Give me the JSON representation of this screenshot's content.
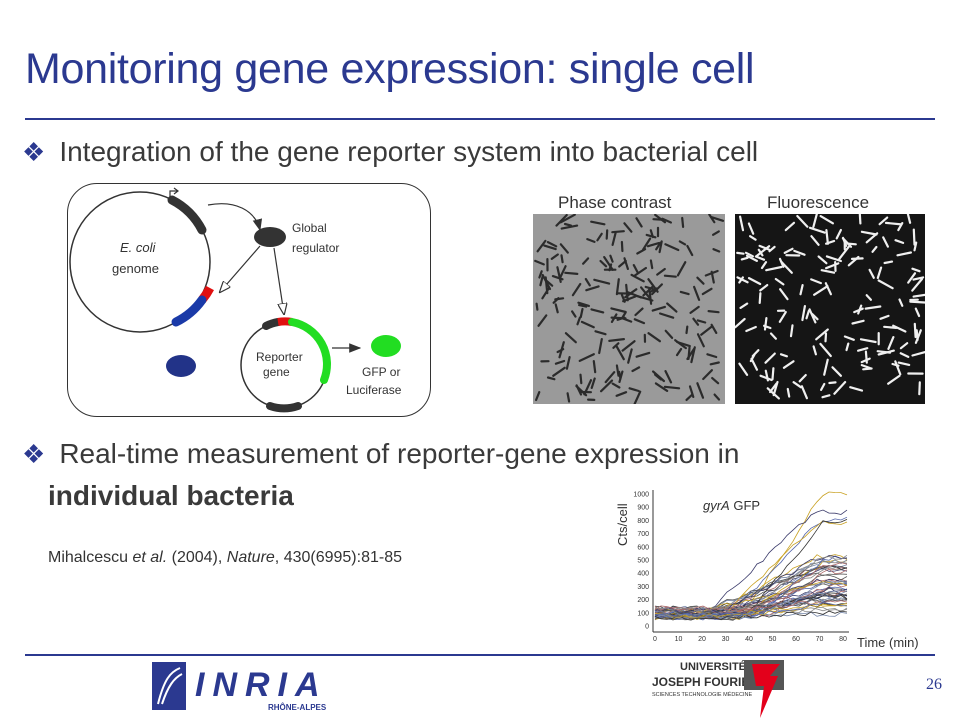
{
  "slide": {
    "title": "Monitoring gene expression: single cell",
    "bullet1": "Integration of the gene reporter system into bacterial cell",
    "bullet2_line1": "Real-time measurement of reporter-gene expression in",
    "bullet2_line2": "individual bacteria",
    "citation_author": "Mihalcescu ",
    "citation_etal": "et al.",
    "citation_year": " (2004), ",
    "citation_journal": "Nature",
    "citation_rest": ", 430(6995):81-85",
    "page_number": "26"
  },
  "diagram": {
    "genome_label_italic": "E. coli",
    "genome_label": "genome",
    "global_regulator_line1": "Global",
    "global_regulator_line2": "regulator",
    "reporter_line1": "Reporter",
    "reporter_line2": "gene",
    "gfp_line1": "GFP or",
    "gfp_line2": "Luciferase"
  },
  "micrographs": {
    "phase_label": "Phase contrast",
    "fluor_label": "Fluorescence"
  },
  "plot": {
    "title_italic": "gyrA",
    "title_rest": " GFP",
    "ylabel": "Cts/cell",
    "xlabel": "Time (min)",
    "y_ticks": [
      "1000",
      "900",
      "800",
      "700",
      "600",
      "500",
      "400",
      "300",
      "200",
      "100",
      "0"
    ],
    "x_ticks": [
      "0",
      "10",
      "20",
      "30",
      "40",
      "50",
      "60",
      "70",
      "80"
    ]
  },
  "logos": {
    "inria_text": "INRIA",
    "inria_sub": "RHÔNE-ALPES",
    "ujf_line1": "UNIVERSITÉ",
    "ujf_line2": "JOSEPH FOURIER",
    "ujf_line3": "SCIENCES TECHNOLOGIE MÉDECINE"
  },
  "colors": {
    "title_blue": "#2b3990",
    "gene_red": "#e01010",
    "gene_blue": "#1a3aa8",
    "gene_green": "#22dd22",
    "protein_navy": "#223388",
    "logo_red": "#e3001b"
  }
}
